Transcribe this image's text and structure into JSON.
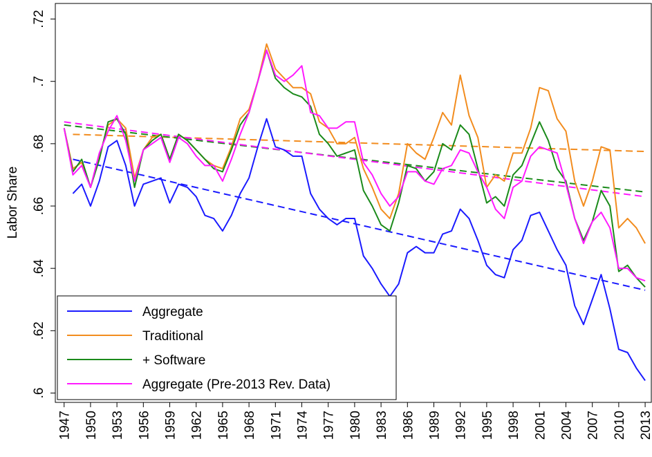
{
  "chart_data": {
    "type": "line",
    "y_label": "Labor Share",
    "x": [
      1947,
      1948,
      1949,
      1950,
      1951,
      1952,
      1953,
      1954,
      1955,
      1956,
      1957,
      1958,
      1959,
      1960,
      1961,
      1962,
      1963,
      1964,
      1965,
      1966,
      1967,
      1968,
      1969,
      1970,
      1971,
      1972,
      1973,
      1974,
      1975,
      1976,
      1977,
      1978,
      1979,
      1980,
      1981,
      1982,
      1983,
      1984,
      1985,
      1986,
      1987,
      1988,
      1989,
      1990,
      1991,
      1992,
      1993,
      1994,
      1995,
      1996,
      1997,
      1998,
      1999,
      2000,
      2001,
      2002,
      2003,
      2004,
      2005,
      2006,
      2007,
      2008,
      2009,
      2010,
      2011,
      2012,
      2013
    ],
    "xlim": [
      1946,
      2013.7
    ],
    "xticks": [
      1947,
      1950,
      1953,
      1956,
      1959,
      1962,
      1965,
      1968,
      1971,
      1974,
      1977,
      1980,
      1983,
      1986,
      1989,
      1992,
      1995,
      1998,
      2001,
      2004,
      2007,
      2010,
      2013
    ],
    "ylim": [
      0.597,
      0.725
    ],
    "yticks": [
      {
        "value": 0.6,
        "label": ".6"
      },
      {
        "value": 0.62,
        "label": ".62"
      },
      {
        "value": 0.64,
        "label": ".64"
      },
      {
        "value": 0.66,
        "label": ".66"
      },
      {
        "value": 0.68,
        "label": ".68"
      },
      {
        "value": 0.7,
        "label": ".7"
      },
      {
        "value": 0.72,
        "label": ".72"
      }
    ],
    "legend": "lower left",
    "series": [
      {
        "name": "Aggregate",
        "color": "#1a1aff",
        "values": [
          null,
          0.664,
          0.667,
          0.66,
          0.668,
          0.679,
          0.681,
          0.673,
          0.66,
          0.667,
          0.668,
          0.669,
          0.661,
          0.667,
          0.666,
          0.663,
          0.657,
          0.656,
          0.652,
          0.657,
          0.664,
          0.669,
          0.679,
          0.688,
          0.679,
          0.678,
          0.676,
          0.676,
          0.664,
          0.659,
          0.656,
          0.654,
          0.656,
          0.656,
          0.644,
          0.64,
          0.635,
          0.631,
          0.635,
          0.645,
          0.647,
          0.645,
          0.645,
          0.651,
          0.652,
          0.659,
          0.656,
          0.649,
          0.641,
          0.638,
          0.637,
          0.646,
          0.649,
          0.657,
          0.658,
          0.652,
          0.646,
          0.641,
          0.628,
          0.622,
          0.63,
          0.638,
          0.627,
          0.614,
          0.613,
          0.608,
          0.604
        ]
      },
      {
        "name": "Traditional",
        "color": "#f28c1e",
        "values": [
          0.685,
          0.672,
          0.674,
          0.666,
          0.676,
          0.686,
          0.688,
          0.685,
          0.669,
          0.678,
          0.682,
          0.683,
          0.675,
          0.683,
          0.681,
          0.678,
          0.675,
          0.673,
          0.672,
          0.679,
          0.688,
          0.691,
          0.7,
          0.712,
          0.704,
          0.701,
          0.698,
          0.698,
          0.696,
          0.687,
          0.685,
          0.68,
          0.68,
          0.682,
          0.672,
          0.666,
          0.659,
          0.656,
          0.664,
          0.68,
          0.677,
          0.675,
          0.682,
          0.69,
          0.686,
          0.702,
          0.689,
          0.682,
          0.666,
          0.67,
          0.668,
          0.677,
          0.677,
          0.685,
          0.698,
          0.697,
          0.688,
          0.684,
          0.668,
          0.66,
          0.668,
          0.679,
          0.678,
          0.653,
          0.656,
          0.653,
          0.648
        ]
      },
      {
        "name": "+ Software",
        "color": "#1a8a1a",
        "values": [
          0.685,
          0.671,
          0.675,
          0.666,
          0.675,
          0.687,
          0.688,
          0.683,
          0.666,
          0.678,
          0.681,
          0.683,
          0.675,
          0.683,
          0.681,
          0.678,
          0.675,
          0.672,
          0.671,
          0.678,
          0.686,
          0.69,
          0.7,
          0.71,
          0.701,
          0.698,
          0.696,
          0.695,
          0.692,
          0.683,
          0.68,
          0.676,
          0.677,
          0.678,
          0.665,
          0.66,
          0.654,
          0.652,
          0.661,
          0.673,
          0.672,
          0.668,
          0.671,
          0.68,
          0.678,
          0.686,
          0.683,
          0.672,
          0.661,
          0.663,
          0.66,
          0.67,
          0.673,
          0.68,
          0.687,
          0.681,
          0.672,
          0.668,
          0.656,
          0.649,
          0.655,
          0.665,
          0.66,
          0.639,
          0.641,
          0.637,
          0.634
        ]
      },
      {
        "name": "Aggregate (Pre-2013 Rev. Data)",
        "color": "#ff1aff",
        "values": [
          0.685,
          0.67,
          0.673,
          0.666,
          0.677,
          0.684,
          0.689,
          0.681,
          0.668,
          0.678,
          0.68,
          0.682,
          0.674,
          0.682,
          0.68,
          0.676,
          0.673,
          0.673,
          0.668,
          0.675,
          0.683,
          0.69,
          0.7,
          0.71,
          0.702,
          0.7,
          0.702,
          0.705,
          0.69,
          0.689,
          0.685,
          0.685,
          0.687,
          0.687,
          0.674,
          0.67,
          0.664,
          0.66,
          0.663,
          0.671,
          0.671,
          0.668,
          0.667,
          0.672,
          0.673,
          0.678,
          0.677,
          0.671,
          0.666,
          0.659,
          0.656,
          0.666,
          0.668,
          0.676,
          0.679,
          0.678,
          0.677,
          0.667,
          0.656,
          0.648,
          0.655,
          0.658,
          0.653,
          0.64,
          0.64,
          0.637,
          0.636
        ]
      }
    ],
    "trend_lines": [
      {
        "color": "#1a1aff",
        "x": [
          1948,
          2013
        ],
        "values": [
          0.675,
          0.633
        ]
      },
      {
        "color": "#f28c1e",
        "x": [
          1948,
          2013
        ],
        "values": [
          0.683,
          0.6775
        ]
      },
      {
        "color": "#1a8a1a",
        "x": [
          1947,
          2013
        ],
        "values": [
          0.686,
          0.6645
        ]
      },
      {
        "color": "#ff1aff",
        "x": [
          1947,
          2013
        ],
        "values": [
          0.687,
          0.663
        ]
      }
    ]
  }
}
